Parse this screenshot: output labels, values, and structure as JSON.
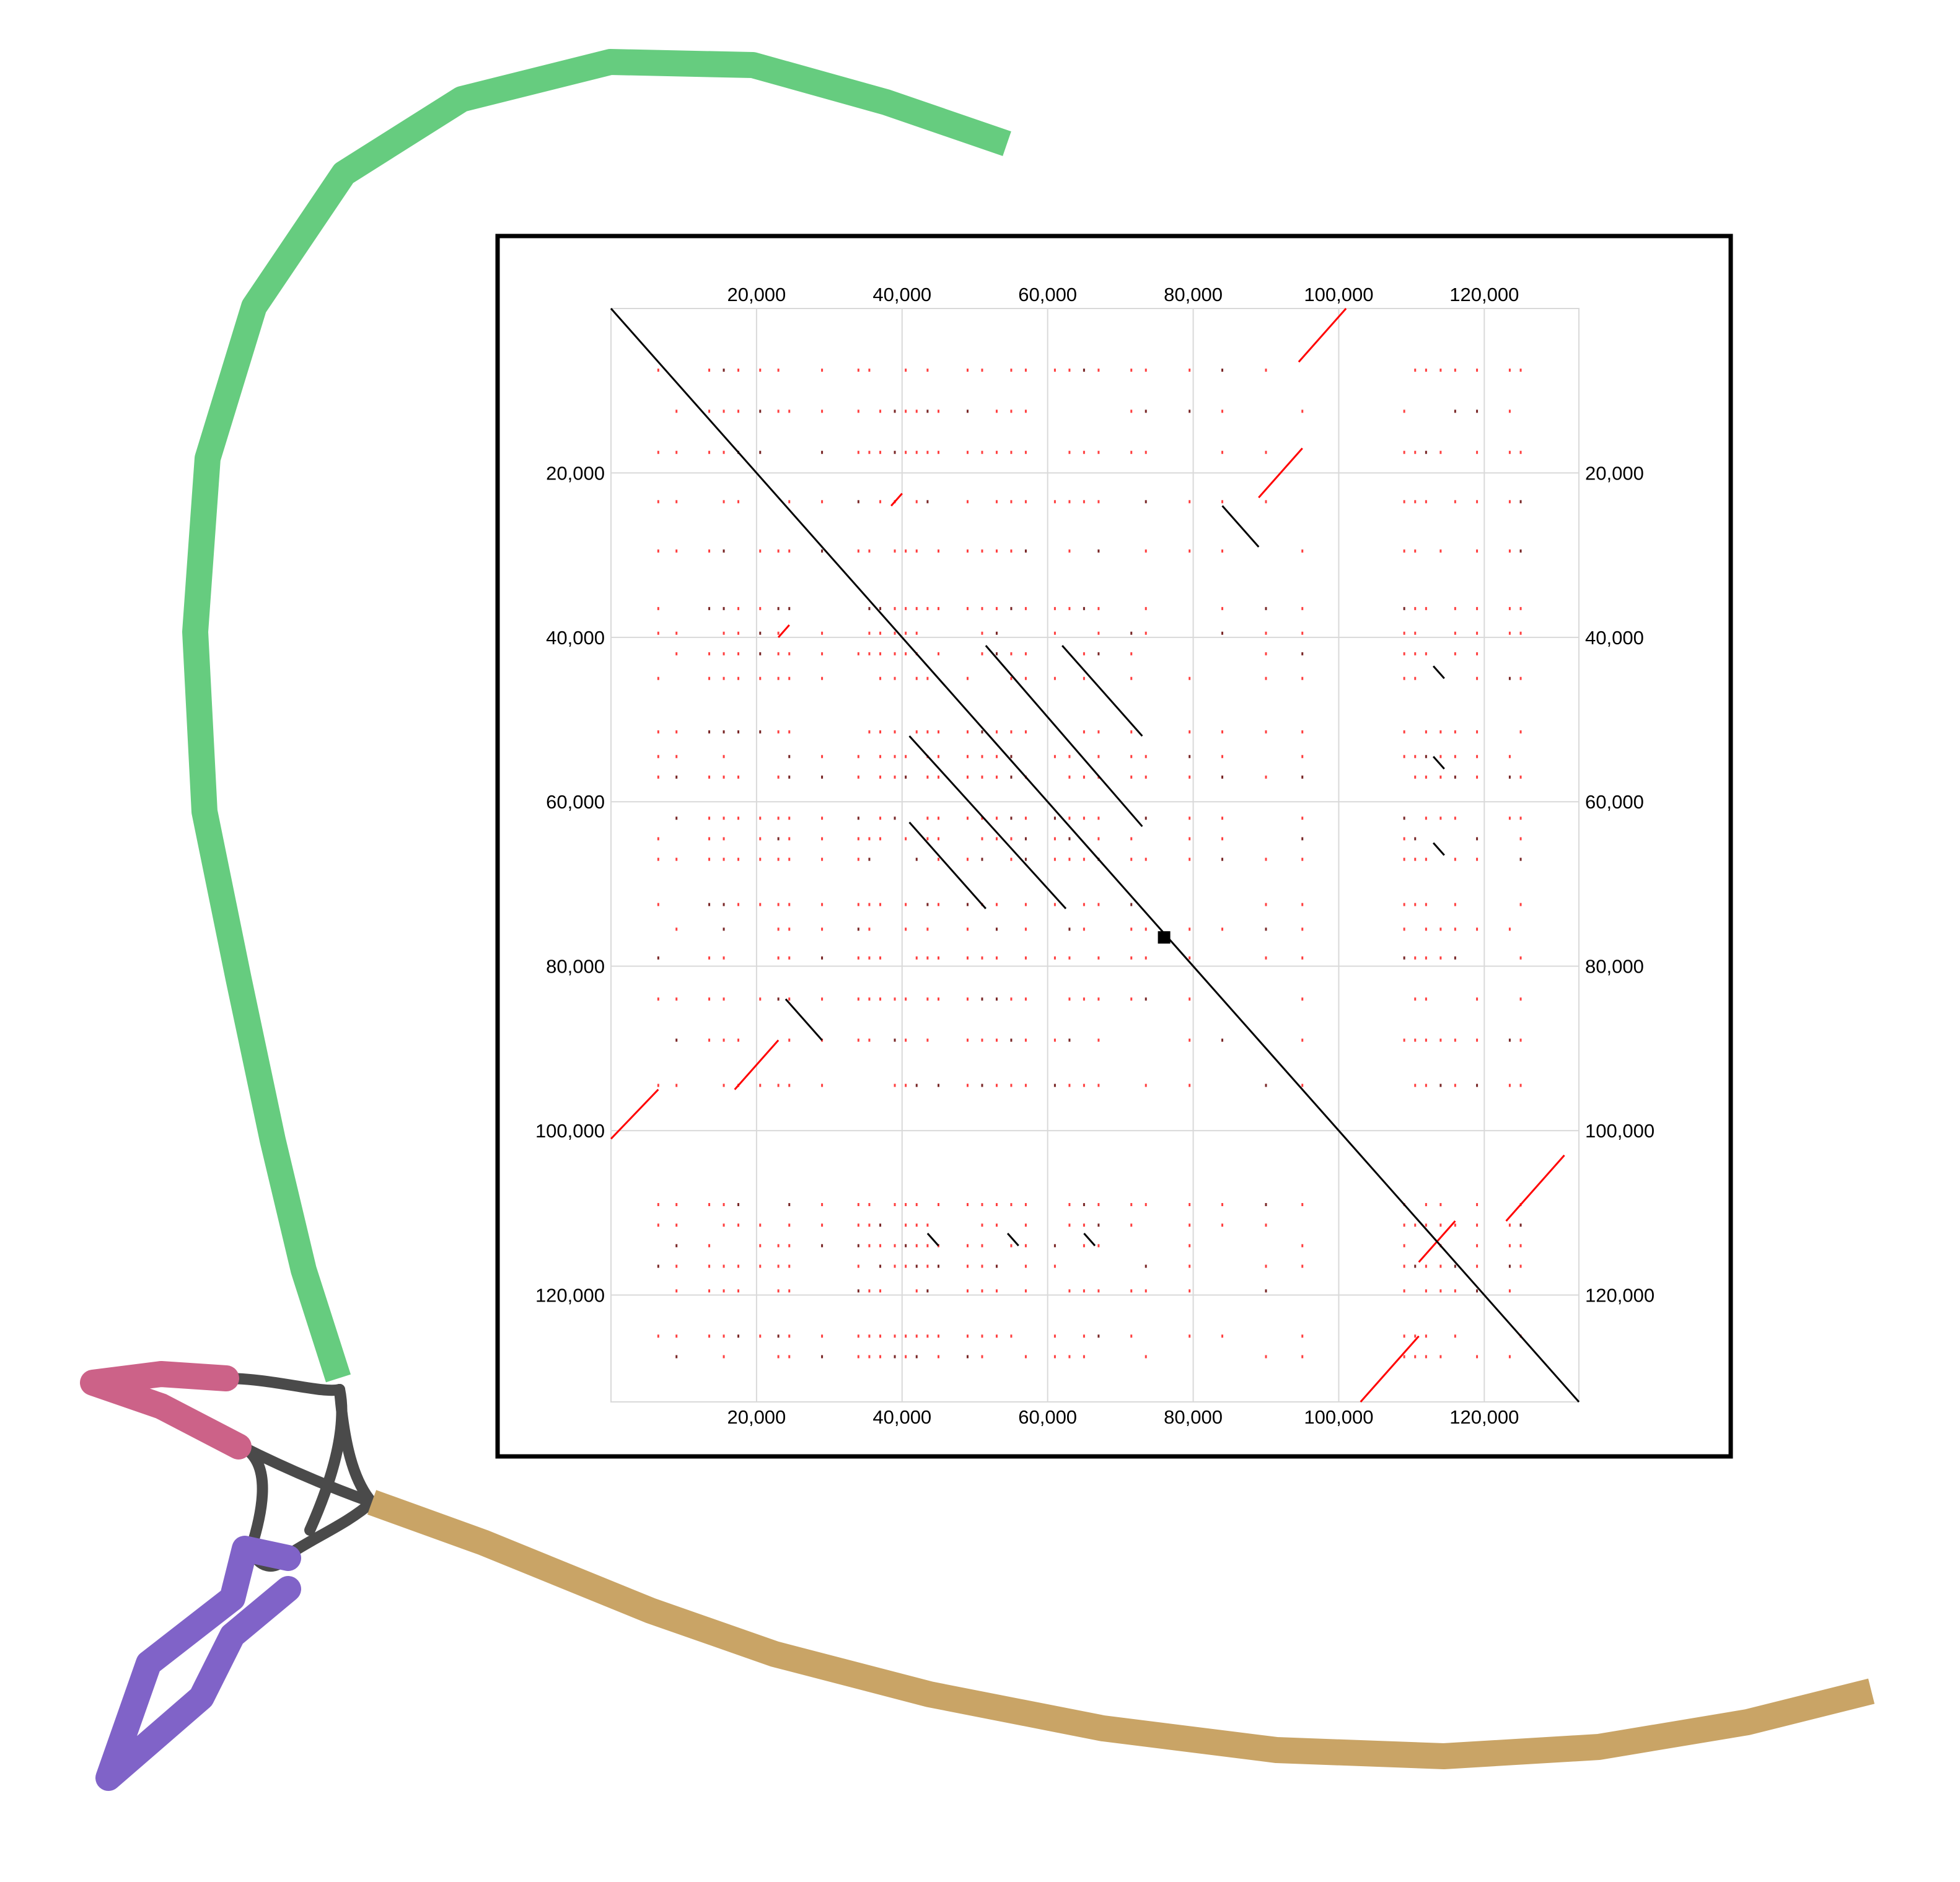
{
  "colors": {
    "background": "#ffffff",
    "segment_green": "#66cc7f",
    "segment_tan": "#c9a466",
    "segment_pink": "#cc6288",
    "segment_purple": "#8063c8",
    "graph_link": "#4a4a4a",
    "frame": "#000000",
    "gridline": "#d9d9d9",
    "forward_match": "#000000",
    "reverse_match": "#ff0000"
  },
  "graph": {
    "segments": [
      {
        "name": "green",
        "color": "#66cc7f"
      },
      {
        "name": "tan",
        "color": "#c9a466"
      },
      {
        "name": "pink",
        "color": "#cc6288"
      },
      {
        "name": "purple",
        "color": "#8063c8"
      }
    ]
  },
  "chart_data": {
    "type": "dotplot",
    "x_range": [
      0,
      133000
    ],
    "y_range": [
      0,
      133000
    ],
    "y_direction": "down",
    "grid": true,
    "x_ticks": [
      "20,000",
      "40,000",
      "60,000",
      "80,000",
      "100,000",
      "120,000"
    ],
    "y_ticks": [
      "20,000",
      "40,000",
      "60,000",
      "80,000",
      "100,000",
      "120,000"
    ],
    "x_tick_values": [
      20000,
      40000,
      60000,
      80000,
      100000,
      120000
    ],
    "y_tick_values": [
      20000,
      40000,
      60000,
      80000,
      100000,
      120000
    ],
    "x_tick_positions": [
      "top",
      "bottom"
    ],
    "y_tick_positions": [
      "left",
      "right"
    ],
    "forward_matches": [
      {
        "x": [
          0,
          133000
        ],
        "y": [
          0,
          133000
        ]
      },
      {
        "x": [
          51500,
          73000
        ],
        "y": [
          41000,
          63000
        ]
      },
      {
        "x": [
          62000,
          73000
        ],
        "y": [
          41000,
          52000
        ]
      },
      {
        "x": [
          41000,
          62500
        ],
        "y": [
          52000,
          73000
        ]
      },
      {
        "x": [
          41000,
          51500
        ],
        "y": [
          62500,
          73000
        ]
      },
      {
        "x": [
          84000,
          89000
        ],
        "y": [
          24000,
          29000
        ]
      },
      {
        "x": [
          24000,
          29000
        ],
        "y": [
          84000,
          89000
        ]
      },
      {
        "x": [
          113000,
          114500
        ],
        "y": [
          43500,
          45000
        ]
      },
      {
        "x": [
          113000,
          114500
        ],
        "y": [
          54500,
          56000
        ]
      },
      {
        "x": [
          113000,
          114500
        ],
        "y": [
          65000,
          66500
        ]
      },
      {
        "x": [
          43500,
          45000
        ],
        "y": [
          112500,
          114000
        ]
      },
      {
        "x": [
          54500,
          56000
        ],
        "y": [
          112500,
          114000
        ]
      },
      {
        "x": [
          65000,
          66500
        ],
        "y": [
          112500,
          114000
        ]
      }
    ],
    "reverse_matches": [
      {
        "x": [
          94500,
          101000
        ],
        "y": [
          6500,
          0
        ]
      },
      {
        "x": [
          89000,
          95000
        ],
        "y": [
          23000,
          17000
        ]
      },
      {
        "x": [
          38500,
          40000
        ],
        "y": [
          24000,
          22500
        ]
      },
      {
        "x": [
          23000,
          24500
        ],
        "y": [
          40000,
          38500
        ]
      },
      {
        "x": [
          0,
          6500
        ],
        "y": [
          101000,
          95000
        ]
      },
      {
        "x": [
          17000,
          23000
        ],
        "y": [
          95000,
          89000
        ]
      },
      {
        "x": [
          123000,
          131000
        ],
        "y": [
          111000,
          103000
        ]
      },
      {
        "x": [
          103000,
          111000
        ],
        "y": [
          133000,
          125000
        ]
      },
      {
        "x": [
          111000,
          116000
        ],
        "y": [
          116000,
          111000
        ]
      }
    ],
    "marker": {
      "x": 76000,
      "y": 76500
    }
  }
}
